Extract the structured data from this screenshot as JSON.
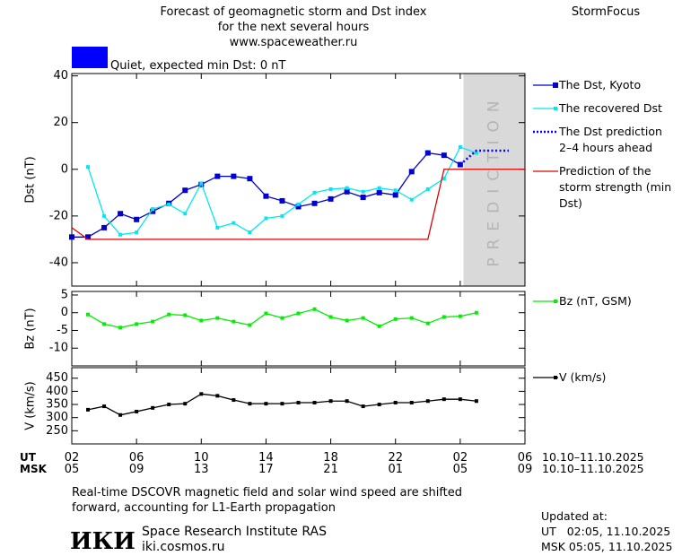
{
  "header": {
    "title_lines": [
      "Forecast of geomagnetic storm and Dst index",
      "for the next several hours",
      "www.spaceweather.ru"
    ],
    "brand": "StormFocus"
  },
  "status": {
    "color": "#0000ff",
    "text": "Quiet, expected min Dst: 0 nT"
  },
  "time_axis": {
    "xlim": [
      0,
      28
    ],
    "rows": [
      {
        "label": "UT",
        "range": "10.10–11.10.2025",
        "ticks": [
          {
            "value": 0,
            "label": "02"
          },
          {
            "value": 4,
            "label": "06"
          },
          {
            "value": 8,
            "label": "10"
          },
          {
            "value": 12,
            "label": "14"
          },
          {
            "value": 16,
            "label": "18"
          },
          {
            "value": 20,
            "label": "22"
          },
          {
            "value": 24,
            "label": "02"
          },
          {
            "value": 28,
            "label": "06"
          }
        ]
      },
      {
        "label": "MSK",
        "range": "10.10–11.10.2025",
        "ticks": [
          {
            "value": 0,
            "label": "05"
          },
          {
            "value": 4,
            "label": "09"
          },
          {
            "value": 8,
            "label": "13"
          },
          {
            "value": 12,
            "label": "17"
          },
          {
            "value": 16,
            "label": "21"
          },
          {
            "value": 20,
            "label": "01"
          },
          {
            "value": 24,
            "label": "05"
          },
          {
            "value": 28,
            "label": "09"
          }
        ]
      }
    ]
  },
  "chart_data": [
    {
      "type": "line",
      "ylabel": "Dst (nT)",
      "ylim": [
        -50,
        41
      ],
      "yticks": [
        -40,
        -20,
        0,
        20,
        40
      ],
      "prediction_zone": {
        "xlim": [
          24.2,
          28
        ],
        "label": "PREDICTION",
        "color": "#d9d9d9"
      },
      "series": [
        {
          "name": "The Dst, Kyoto",
          "color": "#0000cc",
          "line_style": "solid",
          "marker": "square",
          "marker_size": 6,
          "x": [
            0,
            1,
            2,
            3,
            4,
            5,
            6,
            7,
            8,
            9,
            10,
            11,
            12,
            13,
            14,
            15,
            16,
            17,
            18,
            19,
            20,
            21,
            22,
            23,
            24
          ],
          "values": [
            -29,
            -29,
            -25,
            -19,
            -21.5,
            -18,
            -14.6,
            -9,
            -6.5,
            -3,
            -3,
            -4,
            -11.5,
            -13.5,
            -16,
            -14.6,
            -12.7,
            -9.6,
            -12,
            -10,
            -11,
            -1,
            7,
            6,
            2
          ]
        },
        {
          "name": "The recovered Dst",
          "color": "#00e8f0",
          "line_style": "solid",
          "marker": "square",
          "marker_size": 4,
          "x": [
            1,
            2,
            3,
            4,
            5,
            6,
            7,
            8,
            9,
            10,
            11,
            12,
            13,
            14,
            15,
            16,
            17,
            18,
            19,
            20,
            21,
            22,
            23,
            24,
            25
          ],
          "values": [
            1,
            -20,
            -28,
            -27,
            -17,
            -15,
            -19,
            -6,
            -25,
            -23,
            -27,
            -21,
            -20,
            -15,
            -10,
            -8.5,
            -8,
            -9.6,
            -8,
            -9,
            -13,
            -8.5,
            -4,
            9.5,
            7
          ]
        },
        {
          "name": "The Dst prediction 2–4 hours ahead",
          "color": "#0000ff",
          "line_style": "dotted",
          "marker": "none",
          "x": [
            24,
            25,
            27
          ],
          "values": [
            2,
            8,
            8
          ]
        },
        {
          "name": "Prediction of the storm strength (min Dst)",
          "color": "#e00000",
          "line_style": "solid",
          "marker": "none",
          "x": [
            0,
            1,
            22,
            23,
            28
          ],
          "values": [
            -25,
            -30,
            -30,
            0,
            0
          ]
        }
      ]
    },
    {
      "type": "line",
      "ylabel": "Bz (nT)",
      "ylim": [
        -15,
        6
      ],
      "yticks": [
        -10,
        -5,
        0,
        5
      ],
      "series": [
        {
          "name": "Bz (nT, GSM)",
          "color": "#00ee00",
          "line_style": "solid",
          "marker": "square",
          "marker_size": 4,
          "x": [
            1,
            2,
            3,
            4,
            5,
            6,
            7,
            8,
            9,
            10,
            11,
            12,
            13,
            14,
            15,
            16,
            17,
            18,
            19,
            20,
            21,
            22,
            23,
            24,
            25
          ],
          "values": [
            -0.5,
            -3.2,
            -4.2,
            -3.2,
            -2.5,
            -0.5,
            -0.7,
            -2.2,
            -1.5,
            -2.5,
            -3.5,
            -0.2,
            -1.5,
            -0.2,
            1,
            -1.2,
            -2.2,
            -1.5,
            -3.8,
            -1.8,
            -1.5,
            -3,
            -1.2,
            -1,
            0
          ]
        }
      ]
    },
    {
      "type": "line",
      "ylabel": "V (km/s)",
      "ylim": [
        200,
        490
      ],
      "yticks": [
        250,
        300,
        350,
        400,
        450
      ],
      "series": [
        {
          "name": "V (km/s)",
          "color": "#000000",
          "line_style": "solid",
          "marker": "square",
          "marker_size": 4,
          "x": [
            1,
            2,
            3,
            4,
            5,
            6,
            7,
            8,
            9,
            10,
            11,
            12,
            13,
            14,
            15,
            16,
            17,
            18,
            19,
            20,
            21,
            22,
            23,
            24,
            25
          ],
          "values": [
            330,
            343,
            310,
            323,
            337,
            350,
            353,
            390,
            383,
            367,
            353,
            353,
            353,
            357,
            357,
            363,
            363,
            343,
            350,
            357,
            357,
            363,
            370,
            370,
            363
          ]
        }
      ]
    }
  ],
  "footer": {
    "note_lines": [
      "Real-time DSCOVR magnetic field and solar wind speed are shifted",
      "forward, accounting for L1-Earth propagation"
    ],
    "logo": "ИКИ",
    "institute": "Space Research Institute RAS",
    "site": "iki.cosmos.ru",
    "updated_title": "Updated at:",
    "updated_lines": [
      "UT   02:05, 11.10.2025",
      "MSK 05:05, 11.10.2025"
    ]
  }
}
